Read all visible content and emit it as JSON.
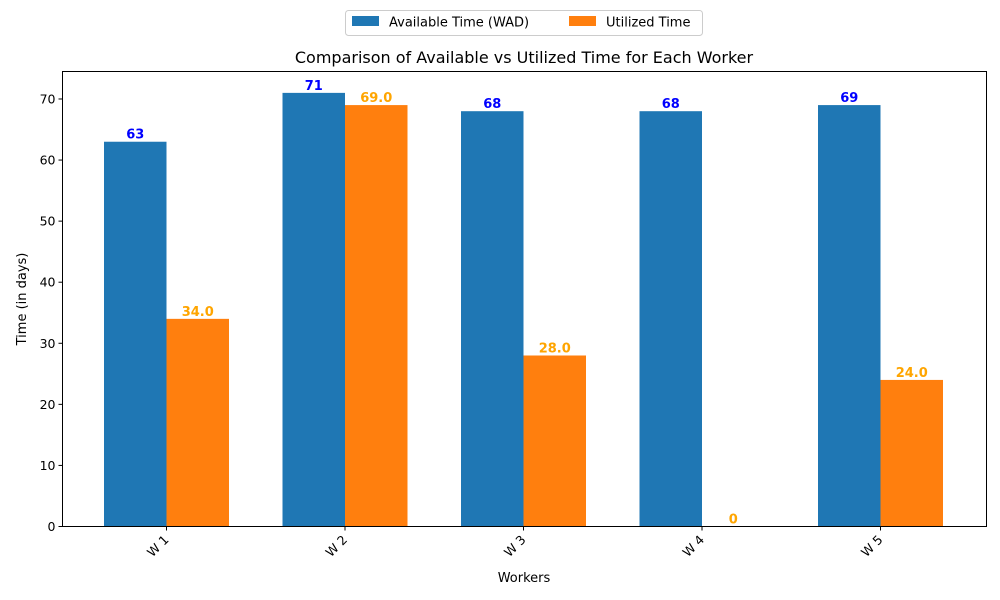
{
  "chart_data": {
    "type": "bar",
    "title": "Comparison of Available vs Utilized Time for Each Worker",
    "xlabel": "Workers",
    "ylabel": "Time (in days)",
    "categories": [
      "W 1",
      "W 2",
      "W 3",
      "W 4",
      "W 5"
    ],
    "ylim": [
      0,
      74.5
    ],
    "yticks": [
      0,
      10,
      20,
      30,
      40,
      50,
      60,
      70
    ],
    "legend_placement": "top-center",
    "grid": false,
    "series": [
      {
        "name": "Available Time (WAD)",
        "color": "#1f77b4",
        "label_color": "#0000ff",
        "values": [
          63,
          71,
          68,
          68,
          69
        ],
        "value_labels": [
          "63",
          "71",
          "68",
          "68",
          "69"
        ]
      },
      {
        "name": "Utilized Time",
        "color": "#ff7f0e",
        "label_color": "#ffa500",
        "values": [
          34,
          69,
          28,
          0,
          24
        ],
        "value_labels": [
          "34.0",
          "69.0",
          "28.0",
          "0",
          "24.0"
        ]
      }
    ]
  }
}
